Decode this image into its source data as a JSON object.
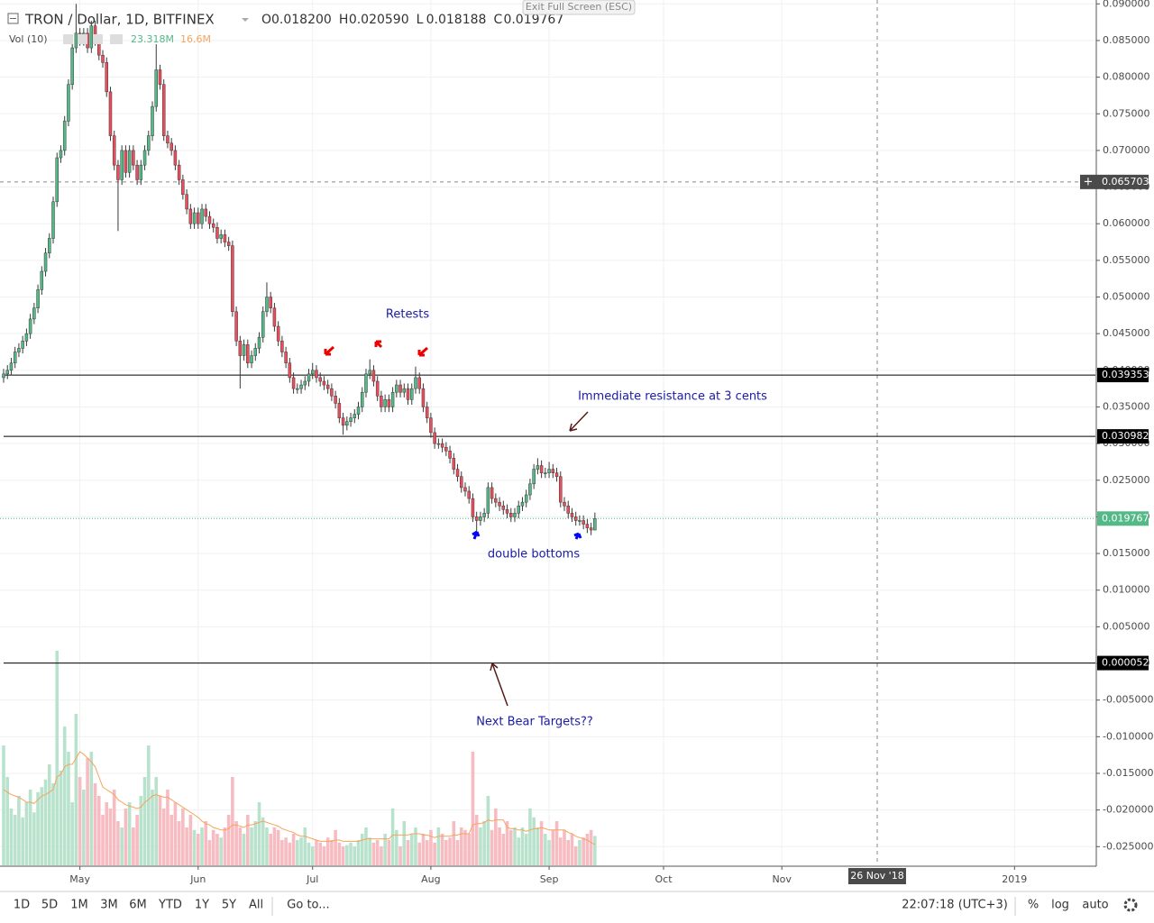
{
  "chart_data": {
    "type": "candlestick",
    "title": "TRON / Dollar, 1D, BITFINEX",
    "ohlc_legend": [
      {
        "key": "O",
        "text": "0.018200"
      },
      {
        "key": "H",
        "text": "0.020590"
      },
      {
        "key": "L",
        "text": "0.018188"
      },
      {
        "key": "C",
        "text": "0.019767"
      }
    ],
    "colors": {
      "up": "#53b987",
      "down": "#eb4d5c",
      "volume_up": "#b9e2cd",
      "volume_down": "#f6bcc2",
      "volume_ma": "#f7a35c",
      "last_price": "#53b987",
      "level": "#000000",
      "crosshair": "#4a4a4a"
    },
    "open": [
      0.039,
      0.0395,
      0.04,
      0.041,
      0.0425,
      0.043,
      0.044,
      0.045,
      0.047,
      0.0485,
      0.051,
      0.0535,
      0.056,
      0.058,
      0.063,
      0.069,
      0.07,
      0.074,
      0.079,
      0.084,
      0.086,
      0.085,
      0.086,
      0.084,
      0.087,
      0.085,
      0.083,
      0.082,
      0.078,
      0.072,
      0.068,
      0.066,
      0.07,
      0.067,
      0.07,
      0.068,
      0.066,
      0.068,
      0.07,
      0.072,
      0.076,
      0.081,
      0.079,
      0.072,
      0.071,
      0.07,
      0.068,
      0.066,
      0.064,
      0.062,
      0.06,
      0.0615,
      0.06,
      0.062,
      0.061,
      0.06,
      0.0595,
      0.058,
      0.0585,
      0.0575,
      0.057,
      0.048,
      0.044,
      0.042,
      0.0435,
      0.041,
      0.042,
      0.043,
      0.0445,
      0.048,
      0.05,
      0.0485,
      0.046,
      0.044,
      0.0425,
      0.041,
      0.039,
      0.0375,
      0.0375,
      0.038,
      0.0385,
      0.0395,
      0.04,
      0.039,
      0.0385,
      0.038,
      0.0375,
      0.0365,
      0.0355,
      0.0335,
      0.0325,
      0.033,
      0.0335,
      0.034,
      0.035,
      0.037,
      0.0395,
      0.04,
      0.0385,
      0.0365,
      0.035,
      0.036,
      0.035,
      0.037,
      0.038,
      0.037,
      0.0375,
      0.036,
      0.0375,
      0.039,
      0.0375,
      0.035,
      0.0335,
      0.0315,
      0.03,
      0.03,
      0.0295,
      0.029,
      0.028,
      0.0265,
      0.0255,
      0.024,
      0.0235,
      0.0225,
      0.02,
      0.0195,
      0.02,
      0.0205,
      0.024,
      0.0225,
      0.022,
      0.0215,
      0.021,
      0.0205,
      0.02,
      0.0205,
      0.0215,
      0.022,
      0.023,
      0.0245,
      0.0265,
      0.027,
      0.026,
      0.026,
      0.0265,
      0.026,
      0.0255,
      0.022,
      0.0215,
      0.0205,
      0.02,
      0.0195,
      0.0195,
      0.019,
      0.0185,
      0.0182
    ],
    "high": [
      0.0402,
      0.0407,
      0.0417,
      0.0432,
      0.0437,
      0.0447,
      0.0457,
      0.0477,
      0.0492,
      0.0517,
      0.0542,
      0.0567,
      0.0587,
      0.0637,
      0.0697,
      0.0707,
      0.0747,
      0.0797,
      0.0847,
      0.09,
      0.0867,
      0.0867,
      0.0867,
      0.0877,
      0.0877,
      0.0857,
      0.0837,
      0.0827,
      0.0787,
      0.0727,
      0.0687,
      0.0707,
      0.0707,
      0.0707,
      0.0707,
      0.0687,
      0.0687,
      0.0707,
      0.0727,
      0.0767,
      0.0845,
      0.0817,
      0.0797,
      0.0727,
      0.0717,
      0.0707,
      0.0687,
      0.0667,
      0.0647,
      0.0627,
      0.0622,
      0.0622,
      0.0627,
      0.0627,
      0.0617,
      0.0607,
      0.0602,
      0.0592,
      0.0592,
      0.0582,
      0.0577,
      0.0487,
      0.0447,
      0.0442,
      0.0442,
      0.0427,
      0.0437,
      0.0452,
      0.0487,
      0.052,
      0.0507,
      0.0492,
      0.0467,
      0.0447,
      0.0432,
      0.0417,
      0.0397,
      0.0382,
      0.0387,
      0.0392,
      0.0402,
      0.041,
      0.0407,
      0.0397,
      0.0392,
      0.0387,
      0.0382,
      0.0372,
      0.0362,
      0.0342,
      0.0337,
      0.0342,
      0.0347,
      0.0357,
      0.0377,
      0.0402,
      0.0415,
      0.0407,
      0.0392,
      0.0372,
      0.0367,
      0.0367,
      0.0377,
      0.0387,
      0.0387,
      0.0382,
      0.0382,
      0.0382,
      0.0405,
      0.0397,
      0.0382,
      0.0357,
      0.0342,
      0.0322,
      0.0307,
      0.0307,
      0.0302,
      0.0297,
      0.0287,
      0.0272,
      0.0262,
      0.0247,
      0.0242,
      0.0232,
      0.0207,
      0.0207,
      0.0212,
      0.0247,
      0.0247,
      0.0232,
      0.0227,
      0.0222,
      0.0217,
      0.0212,
      0.0212,
      0.0222,
      0.0227,
      0.0237,
      0.0252,
      0.0272,
      0.028,
      0.0277,
      0.0267,
      0.0275,
      0.0272,
      0.0267,
      0.0262,
      0.0227,
      0.0222,
      0.0212,
      0.0207,
      0.0202,
      0.0202,
      0.0197,
      0.0192,
      0.02059
    ],
    "low": [
      0.0383,
      0.0388,
      0.0393,
      0.0403,
      0.0418,
      0.0423,
      0.0433,
      0.0443,
      0.0463,
      0.0478,
      0.0503,
      0.0528,
      0.0553,
      0.0573,
      0.0623,
      0.0683,
      0.0693,
      0.0733,
      0.0783,
      0.0833,
      0.0843,
      0.0843,
      0.0833,
      0.0833,
      0.0843,
      0.0823,
      0.0813,
      0.0773,
      0.0713,
      0.0673,
      0.059,
      0.0653,
      0.0663,
      0.0663,
      0.0673,
      0.0653,
      0.0653,
      0.0673,
      0.0693,
      0.0713,
      0.0753,
      0.0783,
      0.0713,
      0.0703,
      0.0693,
      0.0673,
      0.0653,
      0.0633,
      0.0613,
      0.0593,
      0.0593,
      0.0593,
      0.0593,
      0.0603,
      0.0593,
      0.0588,
      0.0573,
      0.0573,
      0.0568,
      0.0563,
      0.0473,
      0.0433,
      0.0375,
      0.0413,
      0.0403,
      0.0403,
      0.0413,
      0.0423,
      0.0438,
      0.0473,
      0.0478,
      0.0453,
      0.0433,
      0.0418,
      0.0403,
      0.0383,
      0.0368,
      0.0368,
      0.0368,
      0.0373,
      0.0378,
      0.0388,
      0.0383,
      0.0378,
      0.0373,
      0.0368,
      0.0358,
      0.0348,
      0.0328,
      0.0312,
      0.0318,
      0.0323,
      0.0328,
      0.0333,
      0.0343,
      0.0363,
      0.0388,
      0.0378,
      0.0358,
      0.0343,
      0.0343,
      0.0343,
      0.0343,
      0.0363,
      0.0363,
      0.0363,
      0.0353,
      0.0353,
      0.0368,
      0.0368,
      0.0343,
      0.0328,
      0.0308,
      0.0293,
      0.0293,
      0.0288,
      0.0283,
      0.0273,
      0.0258,
      0.0248,
      0.0233,
      0.0228,
      0.0218,
      0.0193,
      0.0175,
      0.0188,
      0.0193,
      0.0198,
      0.0218,
      0.0213,
      0.0208,
      0.0203,
      0.0198,
      0.0193,
      0.0193,
      0.0198,
      0.0208,
      0.0213,
      0.0223,
      0.0238,
      0.0258,
      0.0253,
      0.0253,
      0.0253,
      0.0253,
      0.0248,
      0.0213,
      0.0208,
      0.0198,
      0.0193,
      0.0188,
      0.0188,
      0.0183,
      0.0178,
      0.0175,
      0.018188
    ],
    "close": [
      0.0395,
      0.04,
      0.041,
      0.0425,
      0.043,
      0.044,
      0.045,
      0.047,
      0.0485,
      0.051,
      0.0535,
      0.056,
      0.058,
      0.063,
      0.069,
      0.07,
      0.074,
      0.079,
      0.084,
      0.086,
      0.085,
      0.086,
      0.084,
      0.087,
      0.085,
      0.083,
      0.082,
      0.078,
      0.072,
      0.068,
      0.066,
      0.07,
      0.067,
      0.07,
      0.068,
      0.066,
      0.068,
      0.07,
      0.072,
      0.076,
      0.081,
      0.079,
      0.072,
      0.071,
      0.07,
      0.068,
      0.066,
      0.064,
      0.062,
      0.06,
      0.0615,
      0.06,
      0.062,
      0.061,
      0.06,
      0.0595,
      0.058,
      0.0585,
      0.0575,
      0.057,
      0.048,
      0.044,
      0.042,
      0.0435,
      0.041,
      0.042,
      0.043,
      0.0445,
      0.048,
      0.05,
      0.0485,
      0.046,
      0.044,
      0.0425,
      0.041,
      0.039,
      0.0375,
      0.0375,
      0.038,
      0.0385,
      0.0395,
      0.04,
      0.039,
      0.0385,
      0.038,
      0.0375,
      0.0365,
      0.0355,
      0.0335,
      0.0325,
      0.033,
      0.0335,
      0.034,
      0.035,
      0.037,
      0.0395,
      0.04,
      0.0385,
      0.0365,
      0.035,
      0.036,
      0.035,
      0.037,
      0.038,
      0.037,
      0.0375,
      0.036,
      0.0375,
      0.039,
      0.0375,
      0.035,
      0.0335,
      0.0315,
      0.03,
      0.03,
      0.0295,
      0.029,
      0.028,
      0.0265,
      0.0255,
      0.024,
      0.0235,
      0.0225,
      0.02,
      0.0195,
      0.02,
      0.0205,
      0.024,
      0.0225,
      0.022,
      0.0215,
      0.021,
      0.0205,
      0.02,
      0.0205,
      0.0215,
      0.022,
      0.023,
      0.0245,
      0.0265,
      0.027,
      0.026,
      0.026,
      0.0265,
      0.026,
      0.0255,
      0.022,
      0.0215,
      0.0205,
      0.02,
      0.0195,
      0.0195,
      0.019,
      0.0185,
      0.0182,
      0.019767
    ],
    "volume": {
      "name": "Vol (10)",
      "last_label": "23.318M",
      "ma_last_label": "16.6M",
      "ylim": [
        0,
        170
      ],
      "values": [
        95,
        70,
        45,
        40,
        55,
        38,
        50,
        60,
        42,
        58,
        62,
        68,
        80,
        65,
        170,
        75,
        110,
        90,
        50,
        120,
        70,
        60,
        85,
        90,
        65,
        55,
        40,
        50,
        45,
        60,
        35,
        30,
        45,
        50,
        30,
        40,
        55,
        70,
        95,
        60,
        70,
        55,
        45,
        60,
        40,
        50,
        35,
        45,
        30,
        40,
        28,
        25,
        30,
        35,
        20,
        28,
        25,
        22,
        30,
        40,
        70,
        35,
        30,
        25,
        40,
        30,
        35,
        50,
        38,
        30,
        25,
        30,
        28,
        20,
        22,
        18,
        25,
        20,
        22,
        30,
        18,
        15,
        20,
        18,
        15,
        22,
        20,
        28,
        18,
        15,
        16,
        18,
        15,
        20,
        25,
        30,
        22,
        18,
        20,
        15,
        25,
        20,
        45,
        28,
        15,
        35,
        20,
        25,
        30,
        18,
        25,
        20,
        28,
        18,
        30,
        25,
        20,
        22,
        35,
        20,
        30,
        28,
        25,
        90,
        40,
        30,
        35,
        55,
        28,
        45,
        30,
        25,
        35,
        28,
        30,
        22,
        30,
        25,
        45,
        38,
        30,
        35,
        25,
        20,
        28,
        35,
        22,
        28,
        20,
        25,
        15,
        20,
        22,
        25,
        28,
        23.318
      ],
      "ma": [
        60,
        58,
        56,
        55,
        54,
        52,
        50,
        50,
        49,
        52,
        55,
        56,
        58,
        60,
        70,
        72,
        78,
        80,
        80,
        85,
        90,
        88,
        85,
        82,
        78,
        70,
        62,
        60,
        58,
        56,
        52,
        50,
        48,
        47,
        46,
        45,
        46,
        50,
        52,
        55,
        56,
        55,
        54,
        54,
        52,
        50,
        48,
        46,
        44,
        42,
        40,
        38,
        35,
        33,
        32,
        30,
        29,
        28,
        28,
        29,
        32,
        32,
        31,
        30,
        32,
        32,
        33,
        34,
        35,
        34,
        33,
        32,
        31,
        29,
        28,
        27,
        26,
        24,
        23,
        23,
        22,
        21,
        20,
        19,
        19,
        19,
        19,
        20,
        20,
        19,
        19,
        19,
        19,
        19,
        20,
        21,
        21,
        21,
        21,
        21,
        21,
        21,
        24,
        24,
        24,
        24,
        24,
        25,
        25,
        25,
        24,
        24,
        23,
        22,
        23,
        23,
        23,
        23,
        24,
        24,
        25,
        25,
        25,
        32,
        33,
        33,
        34,
        36,
        35,
        36,
        36,
        36,
        30,
        29,
        29,
        28,
        28,
        27,
        28,
        29,
        29,
        30,
        29,
        28,
        28,
        28,
        28,
        28,
        26,
        25,
        23,
        22,
        21,
        20,
        18,
        16.6
      ]
    },
    "xlim": [
      -0.945,
      286.2
    ],
    "xticks": [
      {
        "value": 20,
        "label": "May"
      },
      {
        "value": 51,
        "label": "Jun"
      },
      {
        "value": 81,
        "label": "Jul"
      },
      {
        "value": 112,
        "label": "Aug"
      },
      {
        "value": 143,
        "label": "Sep"
      },
      {
        "value": 173,
        "label": "Oct"
      },
      {
        "value": 204,
        "label": "Nov"
      },
      {
        "value": 265,
        "label": "2019"
      }
    ],
    "ylim": [
      -0.02755,
      0.09053
    ],
    "yticks": [
      {
        "value": 0.09,
        "label": "0.090000"
      },
      {
        "value": 0.085,
        "label": "0.085000"
      },
      {
        "value": 0.08,
        "label": "0.080000"
      },
      {
        "value": 0.075,
        "label": "0.075000"
      },
      {
        "value": 0.07,
        "label": "0.070000"
      },
      {
        "value": 0.065,
        "label": "0.065000"
      },
      {
        "value": 0.06,
        "label": "0.060000"
      },
      {
        "value": 0.055,
        "label": "0.055000"
      },
      {
        "value": 0.05,
        "label": "0.050000"
      },
      {
        "value": 0.045,
        "label": "0.045000"
      },
      {
        "value": 0.04,
        "label": "0.040000"
      },
      {
        "value": 0.035,
        "label": "0.035000"
      },
      {
        "value": 0.03,
        "label": "0.030000"
      },
      {
        "value": 0.025,
        "label": "0.025000"
      },
      {
        "value": 0.02,
        "label": "0.020000"
      },
      {
        "value": 0.015,
        "label": "0.015000"
      },
      {
        "value": 0.01,
        "label": "0.010000"
      },
      {
        "value": 0.005,
        "label": "0.005000"
      },
      {
        "value": 0,
        "label": "0.000000"
      },
      {
        "value": -0.005,
        "label": "-0.005000"
      },
      {
        "value": -0.01,
        "label": "-0.010000"
      },
      {
        "value": -0.015,
        "label": "-0.015000"
      },
      {
        "value": -0.02,
        "label": "-0.020000"
      },
      {
        "value": -0.025,
        "label": "-0.025000"
      }
    ],
    "grid": true,
    "levels": [
      {
        "value": 0.039353,
        "label": "0.039353"
      },
      {
        "value": 0.030982,
        "label": "0.030982"
      },
      {
        "value": 5.2e-05,
        "label": "0.000052"
      }
    ],
    "last_price": {
      "value": 0.019767,
      "label": "0.019767"
    },
    "crosshair": {
      "y": {
        "value": 0.065703,
        "label": "0.065703"
      },
      "x": {
        "value": 229,
        "label": "26 Nov '18"
      }
    },
    "annotations": [
      "Retests",
      "Immediate resistance at 3 cents",
      "double bottoms",
      "Next Bear Targets??"
    ]
  },
  "ui": {
    "exit": "Exit Full Screen (ESC)",
    "ranges": [
      "1D",
      "5D",
      "1M",
      "3M",
      "6M",
      "YTD",
      "1Y",
      "5Y",
      "All"
    ],
    "goto": "Go to...",
    "clock": "22:07:18 (UTC+3)",
    "percent": "%",
    "log": "log",
    "auto": "auto"
  }
}
